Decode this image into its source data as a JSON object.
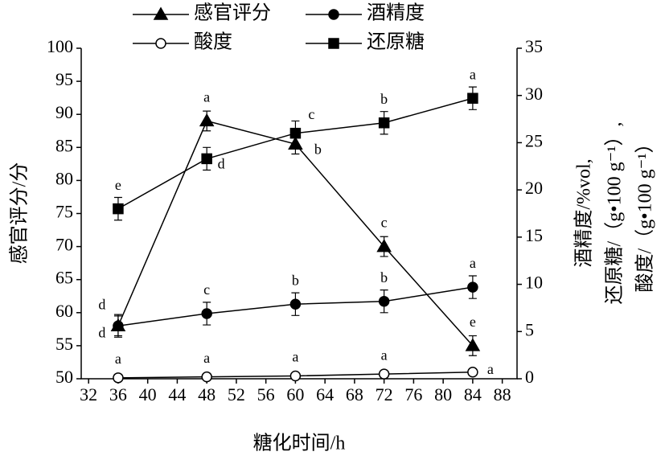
{
  "chart_data": {
    "type": "line",
    "x_label": "糖化时间/h",
    "y_label": "感官评分/分",
    "y2_label": [
      "酒精度/%vol,",
      "还原糖/（g•100 g⁻¹）,",
      "酸度/（g•100 g⁻¹）"
    ],
    "x": [
      36,
      48,
      60,
      72,
      84
    ],
    "xlim": [
      31,
      90
    ],
    "xticks": [
      32,
      36,
      40,
      44,
      48,
      52,
      56,
      60,
      64,
      68,
      72,
      76,
      80,
      84,
      88
    ],
    "ylim": [
      50,
      100
    ],
    "yticks": [
      50,
      55,
      60,
      65,
      70,
      75,
      80,
      85,
      90,
      95,
      100
    ],
    "y2lim": [
      0,
      35
    ],
    "y2ticks": [
      0,
      5,
      10,
      15,
      20,
      25,
      30,
      35
    ],
    "series": [
      {
        "name": "感官评分",
        "color": "#000000",
        "marker": "triangle",
        "values": [
          58,
          89,
          85.5,
          70,
          55
        ],
        "errors": [
          1.5,
          1.5,
          1.5,
          1.5,
          1.5
        ],
        "labels": [
          "d",
          "a",
          "b",
          "c",
          "e"
        ]
      },
      {
        "name": "酒精度",
        "color": "#000000",
        "marker": "circle",
        "axis": "y2",
        "values": [
          5.6,
          6.9,
          7.9,
          8.2,
          9.7
        ],
        "errors": [
          1.2,
          1.2,
          1.2,
          1.2,
          1.2
        ],
        "labels": [
          "d",
          "c",
          "b",
          "b",
          "a"
        ]
      },
      {
        "name": "酸度",
        "color": "#000000",
        "marker": "open-circle",
        "axis": "y2",
        "values": [
          0.1,
          0.2,
          0.3,
          0.5,
          0.7
        ],
        "errors": [
          0.2,
          0.2,
          0.2,
          0.2,
          0.2
        ],
        "labels": [
          "a",
          "a",
          "a",
          "a",
          "a"
        ]
      },
      {
        "name": "还原糖",
        "color": "#000000",
        "marker": "square",
        "axis": "y2",
        "values": [
          18.0,
          23.3,
          26.0,
          27.1,
          29.7
        ],
        "errors": [
          1.2,
          1.2,
          1.3,
          1.2,
          1.2
        ],
        "labels": [
          "e",
          "d",
          "c",
          "b",
          "a"
        ]
      }
    ]
  }
}
